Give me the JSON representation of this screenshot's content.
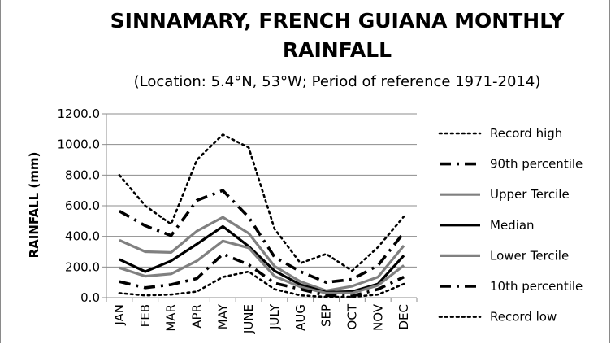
{
  "chart_data": {
    "type": "line",
    "title_line1": "SINNAMARY, FRENCH GUIANA MONTHLY",
    "title_line2": "RAINFALL",
    "subtitle": "(Location: 5.4°N, 53°W; Period of reference 1971-2014)",
    "xlabel": "",
    "ylabel": "RAINFALL (mm)",
    "ylim": [
      0,
      1200
    ],
    "yticks": [
      "0.0",
      "200.0",
      "400.0",
      "600.0",
      "800.0",
      "1000.0",
      "1200.0"
    ],
    "grid": "horizontal",
    "legend_position": "right",
    "categories": [
      "JAN",
      "FEB",
      "MAR",
      "APR",
      "MAY",
      "JUNE",
      "JULY",
      "AUG",
      "SEP",
      "OCT",
      "NOV",
      "DEC"
    ],
    "series": [
      {
        "name": "Record high",
        "style": "dotted",
        "color": "#000000",
        "values": [
          800,
          600,
          480,
          900,
          1065,
          980,
          450,
          225,
          285,
          175,
          330,
          530
        ]
      },
      {
        "name": "90th percentile",
        "style": "dashdot",
        "color": "#000000",
        "values": [
          565,
          470,
          405,
          635,
          700,
          525,
          265,
          170,
          100,
          120,
          210,
          425
        ]
      },
      {
        "name": "Upper Tercile",
        "style": "solid",
        "color": "#808080",
        "values": [
          375,
          300,
          295,
          435,
          525,
          420,
          205,
          105,
          45,
          75,
          135,
          340
        ]
      },
      {
        "name": "Median",
        "style": "solid",
        "color": "#000000",
        "values": [
          250,
          170,
          240,
          350,
          465,
          335,
          175,
          85,
          35,
          40,
          90,
          275
        ]
      },
      {
        "name": "Lower Tercile",
        "style": "solid",
        "color": "#808080",
        "values": [
          195,
          140,
          155,
          240,
          370,
          325,
          140,
          70,
          30,
          30,
          80,
          210
        ]
      },
      {
        "name": "10th percentile",
        "style": "dashdot",
        "color": "#000000",
        "values": [
          105,
          65,
          85,
          125,
          285,
          215,
          95,
          55,
          15,
          10,
          55,
          135
        ]
      },
      {
        "name": "Record low",
        "style": "dotted",
        "color": "#000000",
        "values": [
          30,
          15,
          20,
          40,
          135,
          170,
          55,
          15,
          5,
          5,
          20,
          90
        ]
      }
    ]
  }
}
